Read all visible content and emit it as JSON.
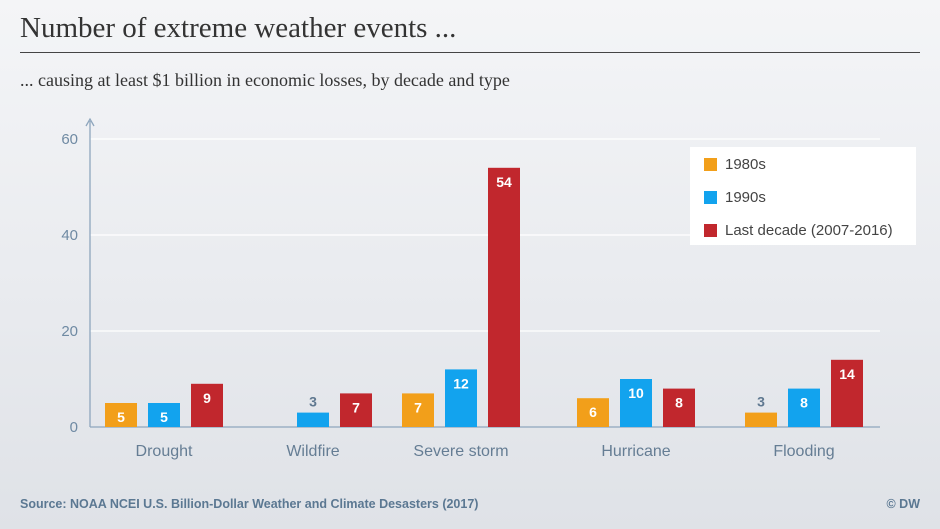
{
  "header": {
    "title": "Number of extreme weather events ...",
    "subtitle": "... causing at least $1 billion in economic losses, by decade and type"
  },
  "footer": {
    "source": "Source: NOAA NCEI U.S. Billion-Dollar Weather and Climate Desasters (2017)",
    "credit": "© DW"
  },
  "colors": {
    "series_1980s": "#f29f1a",
    "series_1990s": "#12a3ee",
    "series_last_decade": "#c1272d",
    "axis": "#8ea6bd",
    "tick_text": "#6f8aa3",
    "category_text": "#657d94"
  },
  "chart_data": {
    "type": "bar",
    "title": "Number of extreme weather events ...",
    "subtitle": "... causing at least $1 billion in economic losses, by decade and type",
    "xlabel": "",
    "ylabel": "",
    "ylim": [
      0,
      60
    ],
    "yticks": [
      0,
      20,
      40,
      60
    ],
    "grid": true,
    "legend_position": "top-right",
    "categories": [
      "Drought",
      "Wildfire",
      "Severe storm",
      "Hurricane",
      "Flooding"
    ],
    "series": [
      {
        "name": "1980s",
        "values": [
          5,
          0,
          7,
          6,
          3
        ],
        "labels": [
          "5",
          "",
          "7",
          "6",
          "3"
        ],
        "color": "#f29f1a"
      },
      {
        "name": "1990s",
        "values": [
          5,
          3,
          12,
          10,
          8
        ],
        "labels": [
          "5",
          "3",
          "12",
          "10",
          "8"
        ],
        "color": "#12a3ee"
      },
      {
        "name": "Last decade (2007-2016)",
        "values": [
          9,
          7,
          54,
          8,
          14
        ],
        "labels": [
          "9",
          "7",
          "54",
          "8",
          "14"
        ],
        "color": "#c1272d"
      }
    ]
  }
}
